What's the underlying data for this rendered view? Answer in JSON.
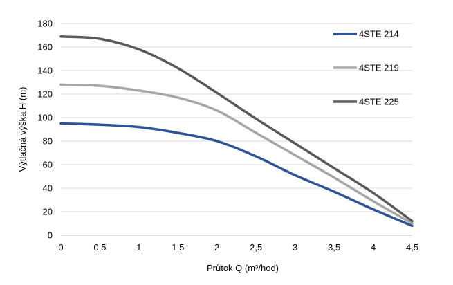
{
  "chart_data": {
    "type": "line",
    "title": "",
    "xlabel": "Průtok Q (m³/hod)",
    "ylabel": "Výtlačná výška H (m)",
    "xlim": [
      0,
      4.5
    ],
    "ylim": [
      0,
      180
    ],
    "x_ticks": [
      0,
      0.5,
      1,
      1.5,
      2,
      2.5,
      3,
      3.5,
      4,
      4.5
    ],
    "x_tick_labels": [
      "0",
      "0,5",
      "1",
      "1,5",
      "2",
      "2,5",
      "3",
      "3,5",
      "4",
      "4,5"
    ],
    "y_ticks": [
      0,
      20,
      40,
      60,
      80,
      100,
      120,
      140,
      160,
      180
    ],
    "y_tick_labels": [
      "0",
      "20",
      "40",
      "60",
      "80",
      "100",
      "120",
      "140",
      "160",
      "180"
    ],
    "grid": "horizontal",
    "legend_position": "right",
    "series": [
      {
        "name": "4STE 214",
        "color": "#2e5496",
        "x": [
          0,
          0.5,
          1,
          1.5,
          2,
          2.5,
          3,
          3.5,
          4,
          4.5
        ],
        "y": [
          95,
          94,
          92,
          87,
          80,
          67,
          51,
          37,
          22,
          8
        ]
      },
      {
        "name": "4STE 219",
        "color": "#a6a6a6",
        "x": [
          0,
          0.5,
          1,
          1.5,
          2,
          2.5,
          3,
          3.5,
          4,
          4.5
        ],
        "y": [
          128,
          127,
          123,
          117,
          106,
          87,
          68,
          49,
          29,
          10
        ]
      },
      {
        "name": "4STE 225",
        "color": "#595959",
        "x": [
          0,
          0.5,
          1,
          1.5,
          2,
          2.5,
          3,
          3.5,
          4,
          4.5
        ],
        "y": [
          169,
          167,
          158,
          142,
          121,
          99,
          78,
          57,
          36,
          12
        ]
      }
    ]
  }
}
